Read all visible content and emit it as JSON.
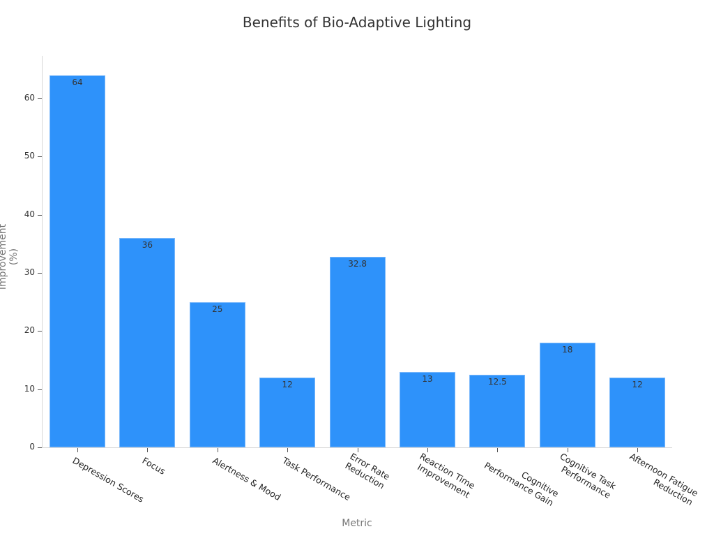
{
  "chart_data": {
    "type": "bar",
    "title": "Benefits of Bio-Adaptive Lighting",
    "xlabel": "Metric",
    "ylabel": "Improvement (%)",
    "categories": [
      "Depression Scores",
      "Focus",
      "Alertness & Mood",
      "Task Performance",
      "Error Rate Reduction",
      "Reaction Time Improvement",
      "Cognitive Performance Gain",
      "Cognitive Task Performance",
      "Afternoon Fatigue Reduction"
    ],
    "values": [
      64,
      36,
      25,
      12,
      32.8,
      13,
      12.5,
      18,
      12
    ],
    "value_labels": [
      "64",
      "36",
      "25",
      "12",
      "32.8",
      "13",
      "12.5",
      "18",
      "12"
    ],
    "ylim": [
      0,
      67
    ],
    "yticks": [
      0,
      10,
      20,
      30,
      40,
      50,
      60
    ],
    "ytick_labels": [
      "0",
      "10",
      "20",
      "30",
      "40",
      "50",
      "60"
    ],
    "grid": false,
    "legend": null,
    "bar_color": "#2e92fa"
  },
  "xtick_labels_wrapped": [
    "Depression Scores",
    "Focus",
    "Alertness & Mood",
    "Task Performance",
    "Error Rate\nReduction",
    "Reaction Time\nImprovement",
    "Cognitive\nPerformance Gain",
    "Cognitive Task\nPerformance",
    "Afternoon Fatigue\nReduction"
  ]
}
